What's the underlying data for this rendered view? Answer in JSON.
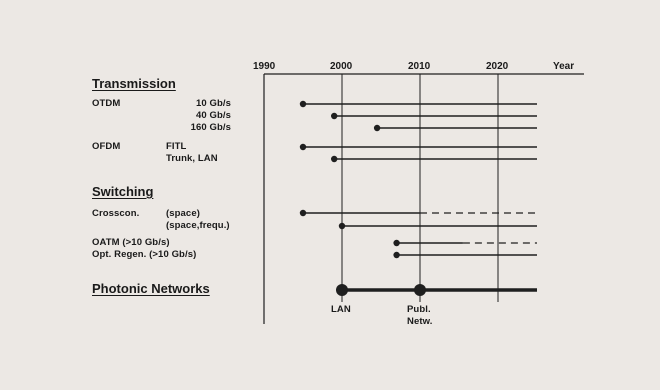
{
  "axis": {
    "years": [
      "1990",
      "2000",
      "2010",
      "2020"
    ],
    "unit": "Year",
    "start": 1990,
    "end": 2025
  },
  "sections": {
    "transmission": "Transmission",
    "switching": "Switching",
    "photonic": "Photonic Networks"
  },
  "rows": {
    "otdm_tech": "OTDM",
    "otdm_10": "10 Gb/s",
    "otdm_40": "40 Gb/s",
    "otdm_160": "160 Gb/s",
    "ofdm_tech": "OFDM",
    "ofdm_fitl": "FITL",
    "ofdm_trunk": "Trunk, LAN",
    "crosscon_tech": "Crosscon.",
    "crosscon_space": "(space)",
    "crosscon_spacefreq": "(space,frequ.)",
    "oatm": "OATM (>10 Gb/s)",
    "regen": "Opt. Regen. (>10 Gb/s)"
  },
  "markers": {
    "lan": "LAN",
    "publ_line1": "Publ.",
    "publ_line2": "Netw."
  },
  "timelines": [
    {
      "key": "otdm_10",
      "start": 1995,
      "solid_end": 2025,
      "dashed_end": null
    },
    {
      "key": "otdm_40",
      "start": 1999,
      "solid_end": 2025,
      "dashed_end": null
    },
    {
      "key": "otdm_160",
      "start": 2004.5,
      "solid_end": 2025,
      "dashed_end": null
    },
    {
      "key": "ofdm_fitl",
      "start": 1995,
      "solid_end": 2025,
      "dashed_end": null
    },
    {
      "key": "ofdm_trunk",
      "start": 1999,
      "solid_end": 2025,
      "dashed_end": null
    },
    {
      "key": "crosscon_space",
      "start": 1995,
      "solid_end": 2010,
      "dashed_end": 2025
    },
    {
      "key": "crosscon_spacefreq",
      "start": 2000,
      "solid_end": 2025,
      "dashed_end": null
    },
    {
      "key": "oatm",
      "start": 2007,
      "solid_end": 2015.5,
      "dashed_end": 2025
    },
    {
      "key": "regen",
      "start": 2007,
      "solid_end": 2025,
      "dashed_end": null
    }
  ],
  "photonic_line": {
    "start": 2000,
    "end": 2025,
    "milestones": [
      2000,
      2010
    ]
  }
}
